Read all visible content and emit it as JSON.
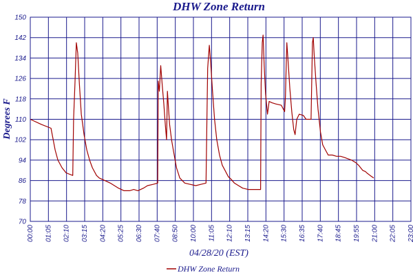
{
  "chart_data": {
    "type": "line",
    "title": "DHW Zone Return",
    "xlabel": "04/28/20 (EST)",
    "ylabel": "Degrees F",
    "ylim": [
      70,
      150
    ],
    "yticks": [
      70,
      78,
      86,
      94,
      102,
      110,
      118,
      126,
      134,
      142,
      150
    ],
    "xlim": [
      0,
      1380
    ],
    "x_unit": "minutes after 00:00",
    "xticks": [
      "00:00",
      "01:05",
      "02:10",
      "03:15",
      "04:20",
      "05:25",
      "06:30",
      "07:40",
      "08:50",
      "10:00",
      "11:05",
      "12:10",
      "13:15",
      "14:20",
      "15:30",
      "16:35",
      "17:40",
      "18:45",
      "19:55",
      "21:00",
      "22:05",
      "23:00"
    ],
    "grid": true,
    "legend": "bottom-center",
    "series": [
      {
        "name": "DHW Zone Return",
        "color": "#a00000",
        "points": [
          [
            0,
            110
          ],
          [
            40,
            108
          ],
          [
            75,
            106.5
          ],
          [
            90,
            98
          ],
          [
            100,
            94
          ],
          [
            115,
            91
          ],
          [
            130,
            89
          ],
          [
            154,
            88
          ],
          [
            157,
            110
          ],
          [
            162,
            124
          ],
          [
            167,
            140
          ],
          [
            172,
            136
          ],
          [
            178,
            124
          ],
          [
            185,
            112
          ],
          [
            195,
            104
          ],
          [
            205,
            98
          ],
          [
            215,
            94
          ],
          [
            225,
            91
          ],
          [
            240,
            88
          ],
          [
            250,
            87
          ],
          [
            270,
            86
          ],
          [
            290,
            85
          ],
          [
            320,
            83
          ],
          [
            340,
            82
          ],
          [
            360,
            82
          ],
          [
            375,
            82.5
          ],
          [
            390,
            82
          ],
          [
            410,
            83
          ],
          [
            425,
            84
          ],
          [
            445,
            84.5
          ],
          [
            462,
            85
          ],
          [
            464,
            125
          ],
          [
            468,
            121
          ],
          [
            473,
            131
          ],
          [
            478,
            124
          ],
          [
            484,
            116
          ],
          [
            490,
            107
          ],
          [
            494,
            102
          ],
          [
            497,
            121
          ],
          [
            500,
            116
          ],
          [
            505,
            108
          ],
          [
            512,
            102
          ],
          [
            520,
            97
          ],
          [
            530,
            91
          ],
          [
            542,
            87
          ],
          [
            560,
            85
          ],
          [
            580,
            84.5
          ],
          [
            600,
            84
          ],
          [
            618,
            84.5
          ],
          [
            637,
            85
          ],
          [
            640,
            108
          ],
          [
            643,
            130
          ],
          [
            649,
            139
          ],
          [
            654,
            132
          ],
          [
            660,
            122
          ],
          [
            668,
            110
          ],
          [
            676,
            102
          ],
          [
            686,
            96
          ],
          [
            696,
            92
          ],
          [
            706,
            90
          ],
          [
            718,
            87.5
          ],
          [
            728,
            86.5
          ],
          [
            740,
            85
          ],
          [
            755,
            84
          ],
          [
            770,
            83
          ],
          [
            790,
            82.5
          ],
          [
            815,
            82.5
          ],
          [
            835,
            82.5
          ],
          [
            837,
            124
          ],
          [
            841,
            140
          ],
          [
            844,
            143
          ],
          [
            848,
            131
          ],
          [
            853,
            120
          ],
          [
            860,
            112
          ],
          [
            866,
            117
          ],
          [
            876,
            116.5
          ],
          [
            890,
            116
          ],
          [
            910,
            115.5
          ],
          [
            922,
            113
          ],
          [
            925,
            119
          ],
          [
            927,
            128
          ],
          [
            930,
            140
          ],
          [
            935,
            132
          ],
          [
            941,
            122
          ],
          [
            948,
            113
          ],
          [
            955,
            106
          ],
          [
            960,
            104
          ],
          [
            966,
            110
          ],
          [
            975,
            112
          ],
          [
            990,
            111.5
          ],
          [
            1000,
            110
          ],
          [
            1018,
            110
          ],
          [
            1020,
            122
          ],
          [
            1023,
            140
          ],
          [
            1026,
            142
          ],
          [
            1030,
            134
          ],
          [
            1036,
            124
          ],
          [
            1043,
            114
          ],
          [
            1052,
            105
          ],
          [
            1060,
            100
          ],
          [
            1070,
            98
          ],
          [
            1080,
            96
          ],
          [
            1095,
            96
          ],
          [
            1110,
            95.5
          ],
          [
            1125,
            95.5
          ],
          [
            1140,
            95
          ],
          [
            1165,
            94
          ],
          [
            1180,
            93
          ],
          [
            1190,
            92
          ],
          [
            1205,
            90
          ],
          [
            1215,
            89.5
          ],
          [
            1220,
            89
          ],
          [
            1232,
            88
          ],
          [
            1245,
            87
          ]
        ]
      }
    ]
  }
}
